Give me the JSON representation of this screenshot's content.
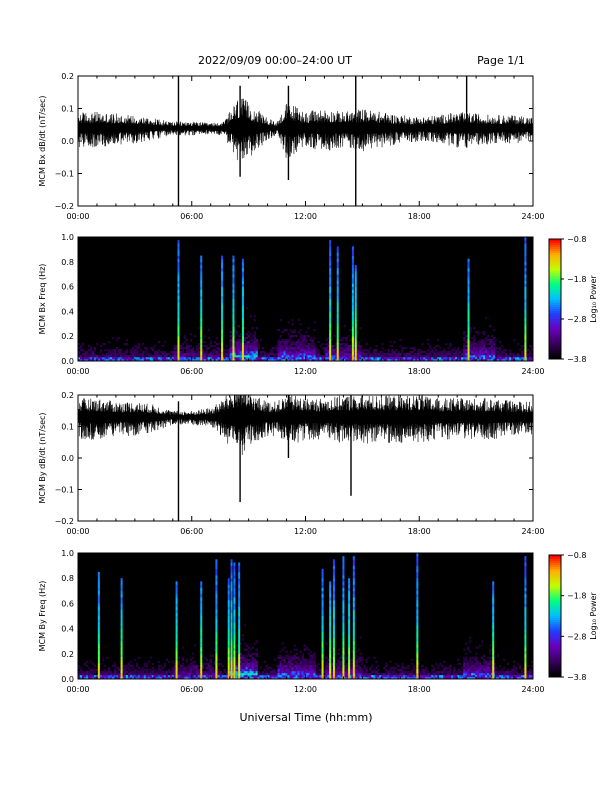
{
  "header": {
    "title": "2022/09/09  00:00–24:00 UT",
    "page": "Page 1/1"
  },
  "xlabel": "Universal Time (hh:mm)",
  "colors": {
    "trace": "#000000",
    "background": "#000000",
    "colormap": [
      "#000000",
      "#3a0060",
      "#6a00c0",
      "#2040ff",
      "#00c0ff",
      "#00ff80",
      "#c0ff00",
      "#ffb000",
      "#ff0000"
    ]
  },
  "chart_data": [
    {
      "type": "line",
      "ylabel": "MCM Bx dB/dt (nT/sec)",
      "xlim": [
        0,
        24
      ],
      "xticks": [
        "00:00",
        "06:00",
        "12:00",
        "18:00",
        "24:00"
      ],
      "ylim": [
        -0.2,
        0.2
      ],
      "yticks": [
        "0.2",
        "0.1",
        "0.0",
        "−0.1",
        "−0.2"
      ],
      "series": [
        {
          "baseline": 0.04,
          "envelope": {
            "x": [
              0,
              1,
              2,
              3,
              4,
              5,
              5.5,
              6,
              7,
              7.7,
              8.5,
              9,
              10,
              10.5,
              11,
              11.5,
              12,
              13,
              14,
              15,
              16,
              17,
              18,
              19,
              20,
              21,
              22,
              23,
              24
            ],
            "amp": [
              0.05,
              0.05,
              0.045,
              0.04,
              0.03,
              0.02,
              0.02,
              0.02,
              0.015,
              0.02,
              0.1,
              0.08,
              0.03,
              0.02,
              0.08,
              0.07,
              0.05,
              0.06,
              0.05,
              0.06,
              0.05,
              0.04,
              0.035,
              0.04,
              0.05,
              0.045,
              0.04,
              0.04,
              0.035
            ]
          },
          "spikes": [
            {
              "x": 5.3,
              "min": -0.2,
              "max": 0.2
            },
            {
              "x": 8.55,
              "min": -0.11,
              "max": 0.17
            },
            {
              "x": 11.1,
              "min": -0.12,
              "max": 0.17
            },
            {
              "x": 14.65,
              "min": -0.2,
              "max": 0.2
            },
            {
              "x": 20.5,
              "min": -0.02,
              "max": 0.2
            }
          ]
        }
      ]
    },
    {
      "type": "heatmap",
      "ylabel": "MCM Bx Freq (Hz)",
      "xlim": [
        0,
        24
      ],
      "xticks": [
        "00:00",
        "06:00",
        "12:00",
        "18:00",
        "24:00"
      ],
      "ylim": [
        0,
        1
      ],
      "yticks": [
        "1.0",
        "0.8",
        "0.6",
        "0.4",
        "0.2",
        "0.0"
      ],
      "colorbar": {
        "label": "Log₁₀ Power",
        "range": [
          -3.8,
          -0.8
        ],
        "ticks": [
          "−0.8",
          "−1.8",
          "−2.8",
          "−3.8"
        ]
      },
      "vertical_lines": [
        5.3,
        6.5,
        7.6,
        8.2,
        8.7,
        13.3,
        13.7,
        14.5,
        14.65,
        20.6,
        23.6
      ]
    },
    {
      "type": "line",
      "ylabel": "MCM By dB/dt (nT/sec)",
      "xlim": [
        0,
        24
      ],
      "xticks": [
        "00:00",
        "06:00",
        "12:00",
        "18:00",
        "24:00"
      ],
      "ylim": [
        -0.2,
        0.2
      ],
      "yticks": [
        "0.2",
        "0.1",
        "0.0",
        "−0.1",
        "−0.2"
      ],
      "series": [
        {
          "baseline": 0.13,
          "envelope": {
            "x": [
              0,
              1,
              2,
              3,
              4,
              5,
              5.5,
              6,
              7,
              7.5,
              8,
              8.5,
              9,
              10,
              10.5,
              11,
              11.5,
              12,
              13,
              14,
              15,
              16,
              17,
              18,
              19,
              20,
              21,
              22,
              23,
              24
            ],
            "amp": [
              0.06,
              0.06,
              0.05,
              0.05,
              0.04,
              0.02,
              0.02,
              0.02,
              0.03,
              0.05,
              0.08,
              0.12,
              0.08,
              0.05,
              0.05,
              0.07,
              0.07,
              0.06,
              0.06,
              0.07,
              0.07,
              0.07,
              0.07,
              0.07,
              0.06,
              0.06,
              0.06,
              0.06,
              0.05,
              0.05
            ]
          },
          "spikes": [
            {
              "x": 5.3,
              "min": -0.2,
              "max": 0.18
            },
            {
              "x": 8.55,
              "min": -0.14,
              "max": 0.2
            },
            {
              "x": 11.1,
              "min": 0.0,
              "max": 0.2
            },
            {
              "x": 14.4,
              "min": -0.12,
              "max": 0.2
            }
          ]
        }
      ]
    },
    {
      "type": "heatmap",
      "ylabel": "MCM By Freq (Hz)",
      "xlim": [
        0,
        24
      ],
      "xticks": [
        "00:00",
        "06:00",
        "12:00",
        "18:00",
        "24:00"
      ],
      "ylim": [
        0,
        1
      ],
      "yticks": [
        "1.0",
        "0.8",
        "0.6",
        "0.4",
        "0.2",
        "0.0"
      ],
      "colorbar": {
        "label": "Log₁₀ Power",
        "range": [
          -3.8,
          -0.8
        ],
        "ticks": [
          "−0.8",
          "−1.8",
          "−2.8",
          "−3.8"
        ]
      },
      "vertical_lines": [
        1.1,
        2.3,
        5.2,
        6.5,
        7.3,
        7.95,
        8.1,
        8.25,
        8.5,
        12.9,
        13.3,
        13.5,
        14.0,
        14.3,
        14.55,
        17.9,
        21.9,
        23.6
      ]
    }
  ]
}
